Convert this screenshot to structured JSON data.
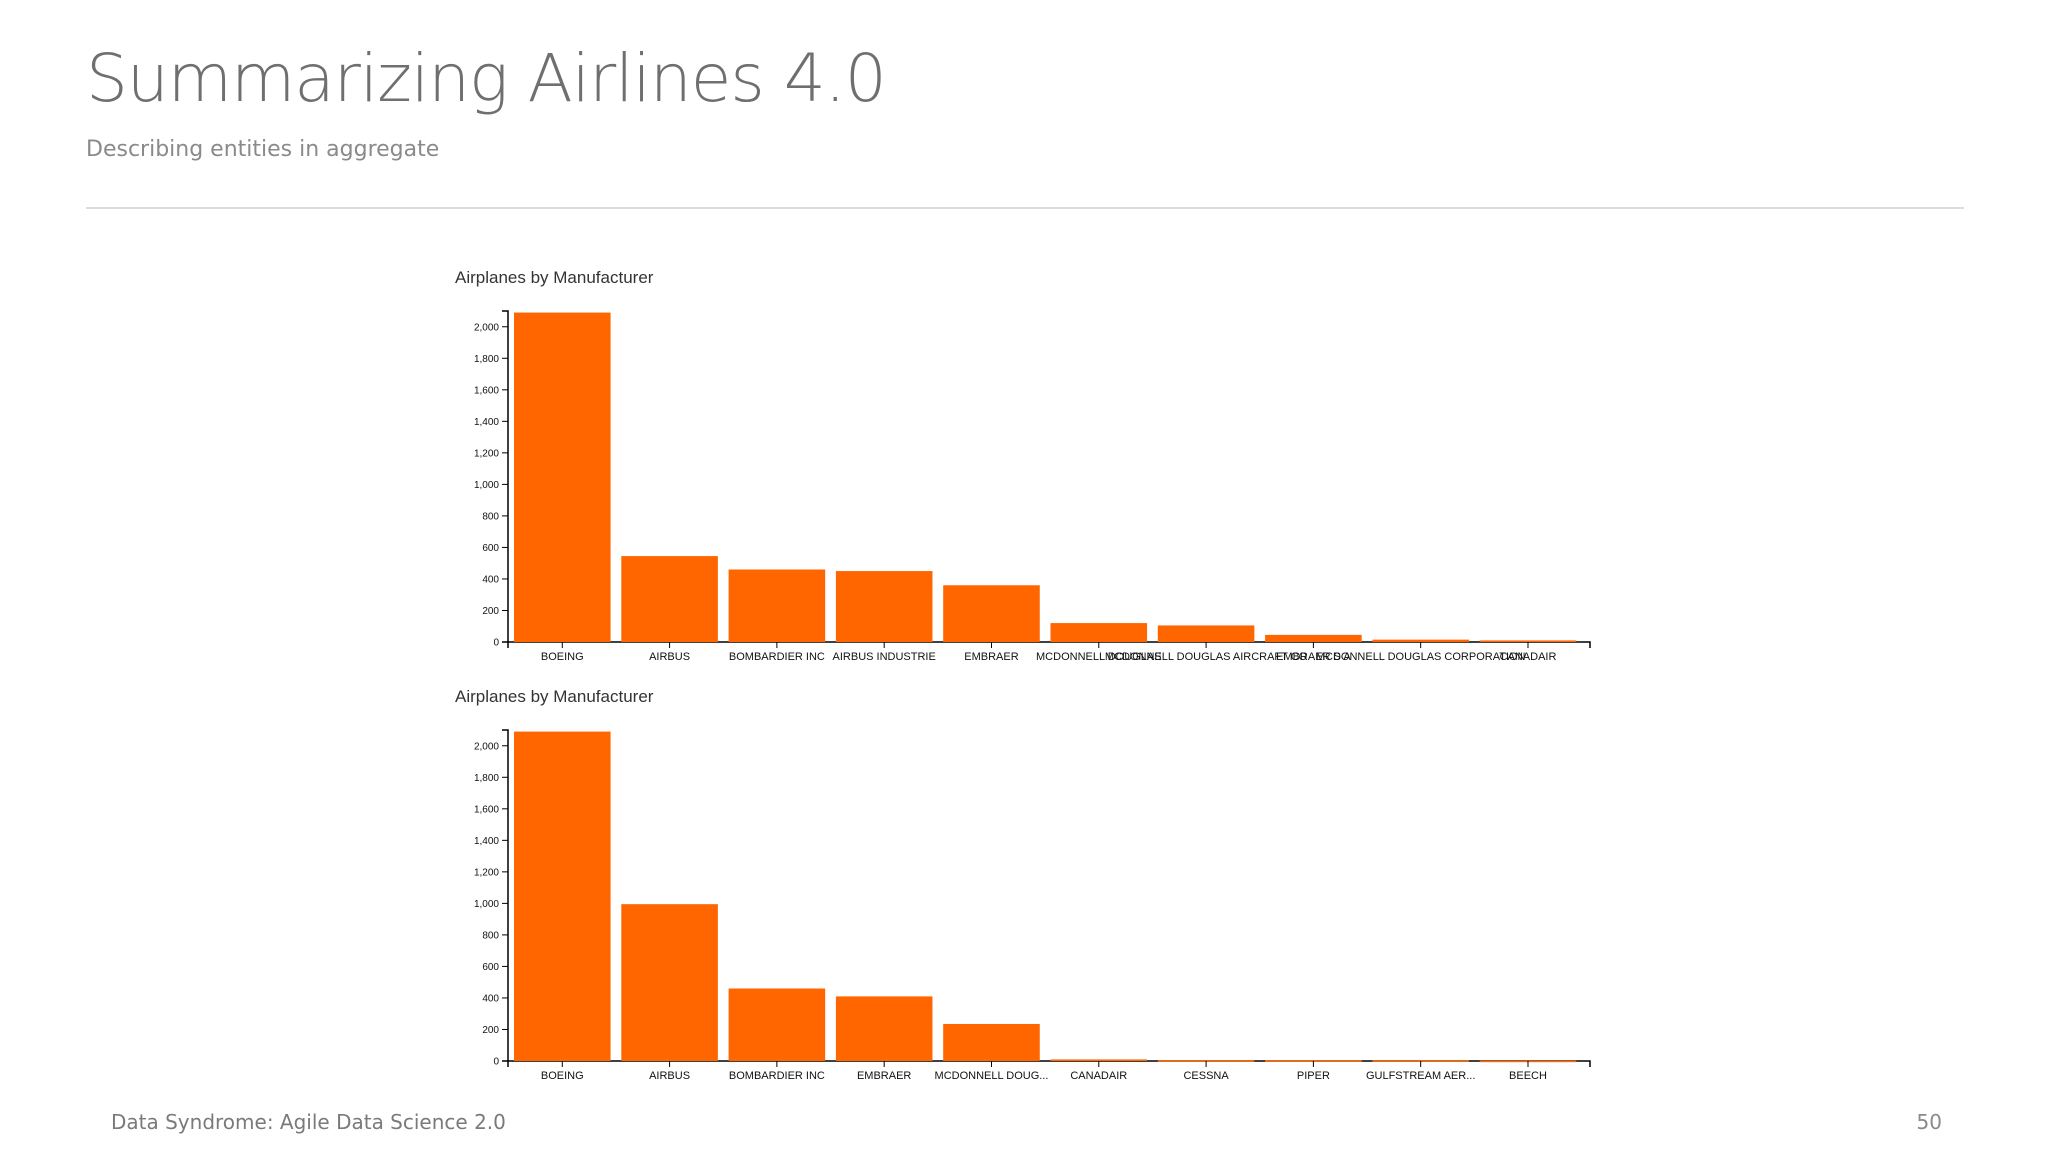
{
  "slide": {
    "title": "Summarizing Airlines 4.0",
    "subtitle": "Describing entities in aggregate",
    "footer": "Data Syndrome: Agile Data Science 2.0",
    "page_number": "50"
  },
  "colors": {
    "bar": "#ff6600",
    "axis": "#000000"
  },
  "chart_data": [
    {
      "type": "bar",
      "title": "Airplanes by Manufacturer",
      "xlabel": "",
      "ylabel": "",
      "ylim": [
        0,
        2100
      ],
      "yticks": [
        0,
        200,
        400,
        600,
        800,
        1000,
        1200,
        1400,
        1600,
        1800,
        2000
      ],
      "ytick_labels": [
        "0",
        "200",
        "400",
        "600",
        "800",
        "1,000",
        "1,200",
        "1,400",
        "1,600",
        "1,800",
        "2,000"
      ],
      "categories": [
        "BOEING",
        "AIRBUS",
        "BOMBARDIER INC",
        "AIRBUS INDUSTRIE",
        "EMBRAER",
        "MCDONNELL DOUGLAS",
        "MCDONNELL DOUGLAS AIRCRAFT CO",
        "EMBRAER S A",
        "MCDONNELL DOUGLAS CORPORATION",
        "CANADAIR"
      ],
      "values": [
        2090,
        545,
        460,
        450,
        360,
        120,
        105,
        45,
        15,
        10
      ],
      "grid": false,
      "legend": "none"
    },
    {
      "type": "bar",
      "title": "Airplanes by Manufacturer",
      "xlabel": "",
      "ylabel": "",
      "ylim": [
        0,
        2100
      ],
      "yticks": [
        0,
        200,
        400,
        600,
        800,
        1000,
        1200,
        1400,
        1600,
        1800,
        2000
      ],
      "ytick_labels": [
        "0",
        "200",
        "400",
        "600",
        "800",
        "1,000",
        "1,200",
        "1,400",
        "1,600",
        "1,800",
        "2,000"
      ],
      "categories": [
        "BOEING",
        "AIRBUS",
        "BOMBARDIER INC",
        "EMBRAER",
        "MCDONNELL DOUG...",
        "CANADAIR",
        "CESSNA",
        "PIPER",
        "GULFSTREAM AER...",
        "BEECH"
      ],
      "values": [
        2090,
        995,
        460,
        410,
        235,
        10,
        5,
        4,
        3,
        2
      ],
      "grid": false,
      "legend": "none"
    }
  ]
}
